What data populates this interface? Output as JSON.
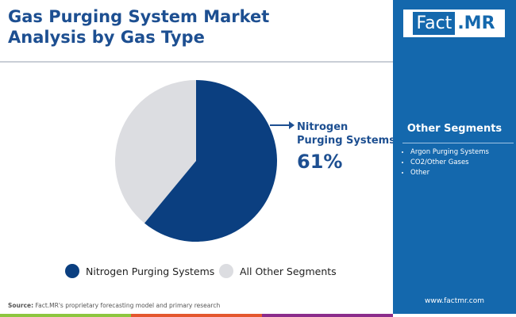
{
  "title": "Gas Purging System Market Analysis by Gas Type",
  "logo": {
    "part1": "Fact",
    "part2": ".MR"
  },
  "side": {
    "heading": "Other Segments",
    "items": [
      "Argon Purging Systems",
      "CO2/Other Gases",
      "Other"
    ],
    "website": "www.factmr.com"
  },
  "source": {
    "label": "Source:",
    "text": " Fact.MR's proprietary forecasting model and primary research"
  },
  "chart_data": {
    "type": "pie",
    "slices": [
      {
        "name": "Nitrogen Purging Systems",
        "value": 61,
        "color": "#0b3f80"
      },
      {
        "name": "All Other Segments",
        "value": 39,
        "color": "#dcdde1"
      }
    ],
    "annotation": {
      "label": "Nitrogen Purging Systems",
      "line1": "Nitrogen",
      "line2": "Purging Systems",
      "value": "61%"
    },
    "legend_position": "bottom"
  }
}
